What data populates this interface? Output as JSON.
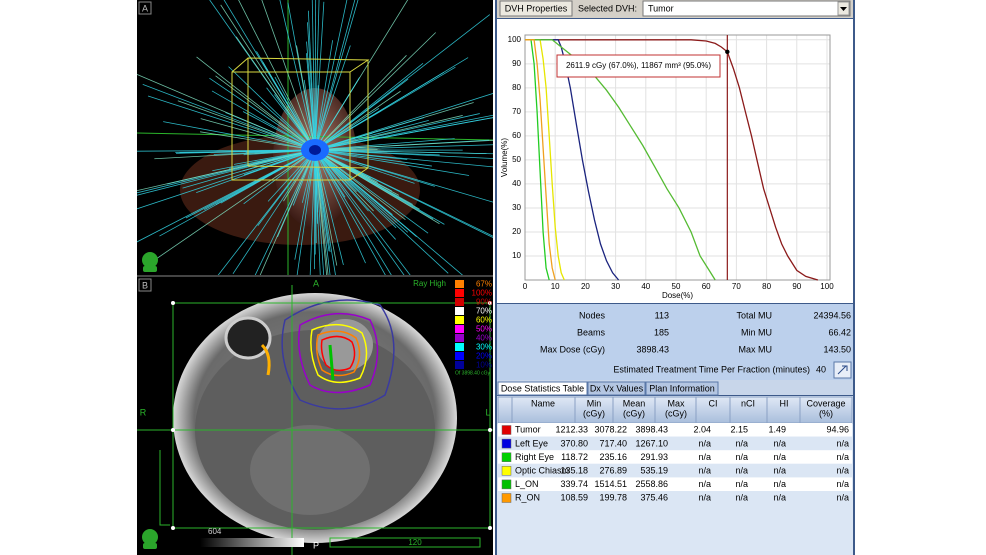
{
  "views": {
    "a": {
      "label": "A"
    },
    "b": {
      "label": "B",
      "top": "A",
      "left": "R",
      "right": "L",
      "bottom": "P",
      "mode": "Ray High",
      "legend": [
        {
          "label": "67%",
          "color": "#ff8000"
        },
        {
          "label": "100%",
          "color": "#ff0000"
        },
        {
          "label": "90%",
          "color": "#d00000"
        },
        {
          "label": "70%",
          "color": "#ffffff"
        },
        {
          "label": "60%",
          "color": "#ffff00"
        },
        {
          "label": "50%",
          "color": "#ff00ff"
        },
        {
          "label": "40%",
          "color": "#9900cc"
        },
        {
          "label": "30%",
          "color": "#00ffff"
        },
        {
          "label": "20%",
          "color": "#0000ff"
        },
        {
          "label": "10%",
          "color": "#000099"
        }
      ],
      "note": "Of 3898.40 cGy",
      "window_low": "604",
      "window_high": "120"
    }
  },
  "toolbar": {
    "button": "DVH Properties",
    "selected_label": "Selected DVH:",
    "selected_value": "Tumor"
  },
  "dvh": {
    "x_label": "Dose(%)",
    "y_label": "Volume(%)",
    "xlim": [
      0,
      101
    ],
    "ylim": [
      0,
      102
    ],
    "xticks": [
      0,
      10,
      20,
      30,
      40,
      50,
      60,
      70,
      80,
      90,
      100
    ],
    "yticks": [
      10,
      20,
      30,
      40,
      50,
      60,
      70,
      80,
      90,
      100
    ],
    "grid": true,
    "annotation": "2611.9 cGy (67.0%), 11867 mm³ (95.0%)",
    "cursor": {
      "x": 67,
      "y": 95
    },
    "series": [
      {
        "color": "#8b1a1a",
        "x": [
          0,
          55,
          60,
          63,
          65,
          67,
          69,
          71,
          73,
          75,
          77,
          79,
          81,
          83,
          85,
          87,
          90,
          93,
          97
        ],
        "values": [
          100,
          100,
          99.5,
          98.5,
          97,
          95,
          88,
          80,
          70,
          60,
          49,
          38,
          30,
          22,
          15,
          10,
          4,
          1.5,
          0
        ]
      },
      {
        "color": "#1a237e",
        "x": [
          0,
          11,
          12,
          13,
          15,
          17,
          19,
          21,
          23,
          25,
          27,
          29,
          31
        ],
        "values": [
          100,
          100,
          97,
          92,
          80,
          65,
          50,
          37,
          25,
          15,
          8,
          3,
          0
        ]
      },
      {
        "color": "#22cc22",
        "x": [
          0,
          2,
          3,
          4,
          5,
          6,
          7,
          8
        ],
        "values": [
          100,
          100,
          90,
          70,
          45,
          20,
          5,
          0
        ]
      },
      {
        "color": "#e6e600",
        "x": [
          0,
          5,
          6,
          7,
          8,
          9,
          10,
          11,
          12,
          13
        ],
        "values": [
          100,
          100,
          92,
          80,
          60,
          40,
          22,
          10,
          3,
          0
        ]
      },
      {
        "color": "#55bb33",
        "x": [
          0,
          9,
          12,
          15,
          19,
          23,
          27,
          31,
          35,
          39,
          43,
          47,
          51,
          55,
          58,
          61,
          63
        ],
        "values": [
          100,
          100,
          97,
          94,
          90,
          85,
          79,
          72,
          64,
          56,
          47,
          38,
          30,
          20,
          10,
          4,
          0
        ]
      },
      {
        "color": "#f0a020",
        "x": [
          0,
          3,
          4,
          5,
          6,
          7,
          8,
          9,
          10
        ],
        "values": [
          100,
          100,
          90,
          75,
          55,
          35,
          15,
          5,
          0
        ]
      }
    ]
  },
  "stats": {
    "items": [
      {
        "label": "Nodes",
        "value": "113"
      },
      {
        "label": "Total MU",
        "value": "24394.56"
      },
      {
        "label": "Beams",
        "value": "185"
      },
      {
        "label": "Min MU",
        "value": "66.42"
      },
      {
        "label": "Max Dose (cGy)",
        "value": "3898.43"
      },
      {
        "label": "Max MU",
        "value": "143.50"
      }
    ],
    "time_label": "Estimated Treatment Time Per Fraction (minutes)",
    "time_value": "40"
  },
  "tabs": [
    "Dose Statistics Table",
    "Dx Vx Values",
    "Plan Information"
  ],
  "table": {
    "columns": [
      [
        "Name"
      ],
      [
        "Min",
        "(cGy)"
      ],
      [
        "Mean",
        "(cGy)"
      ],
      [
        "Max",
        "(cGy)"
      ],
      [
        "CI"
      ],
      [
        "nCI"
      ],
      [
        "HI"
      ],
      [
        "Coverage",
        "(%)"
      ]
    ],
    "rows": [
      {
        "color": "#e00000",
        "cells": [
          "Tumor",
          "1212.33",
          "3078.22",
          "3898.43",
          "2.04",
          "2.15",
          "1.49",
          "94.96"
        ]
      },
      {
        "color": "#0000e0",
        "cells": [
          "Left Eye",
          "370.80",
          "717.40",
          "1267.10",
          "n/a",
          "n/a",
          "n/a",
          "n/a"
        ]
      },
      {
        "color": "#00d000",
        "cells": [
          "Right Eye",
          "118.72",
          "235.16",
          "291.93",
          "n/a",
          "n/a",
          "n/a",
          "n/a"
        ]
      },
      {
        "color": "#ffff00",
        "cells": [
          "Optic Chiasm",
          "135.18",
          "276.89",
          "535.19",
          "n/a",
          "n/a",
          "n/a",
          "n/a"
        ]
      },
      {
        "color": "#00c000",
        "cells": [
          "L_ON",
          "339.74",
          "1514.51",
          "2558.86",
          "n/a",
          "n/a",
          "n/a",
          "n/a"
        ]
      },
      {
        "color": "#ff9900",
        "cells": [
          "R_ON",
          "108.59",
          "199.78",
          "375.46",
          "n/a",
          "n/a",
          "n/a",
          "n/a"
        ]
      }
    ]
  }
}
